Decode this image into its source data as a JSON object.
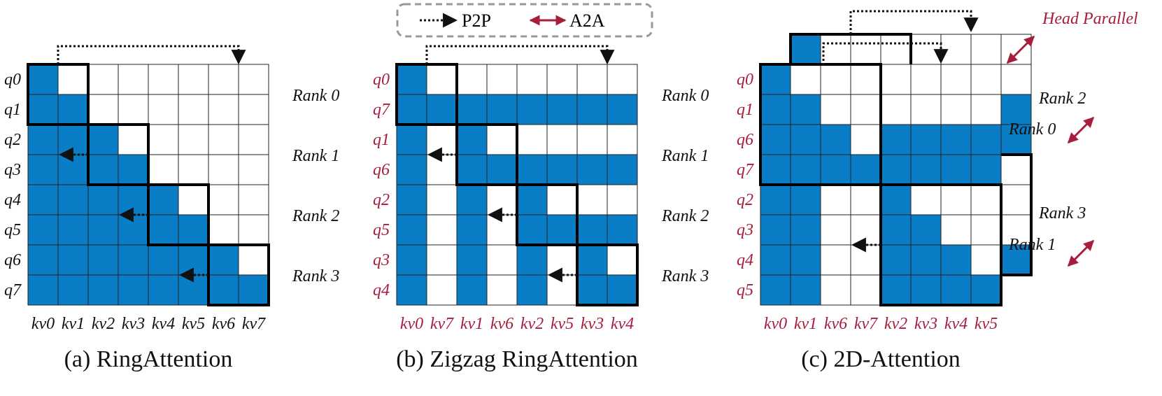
{
  "colors": {
    "fill": "#0a7dc7",
    "accent": "#a61e3c",
    "line": "#222222"
  },
  "legend": {
    "p2p": "P2P",
    "a2a": "A2A"
  },
  "head_parallel": "Head Parallel",
  "panels": {
    "a": {
      "caption": "(a) RingAttention",
      "rows": [
        "q0",
        "q1",
        "q2",
        "q3",
        "q4",
        "q5",
        "q6",
        "q7"
      ],
      "cols": [
        "kv0",
        "kv1",
        "kv2",
        "kv3",
        "kv4",
        "kv5",
        "kv6",
        "kv7"
      ],
      "ranks": [
        "Rank 0",
        "Rank 1",
        "Rank 2",
        "Rank 3"
      ]
    },
    "b": {
      "caption": "(b) Zigzag RingAttention",
      "rows": [
        "q0",
        "q7",
        "q1",
        "q6",
        "q2",
        "q5",
        "q3",
        "q4"
      ],
      "cols": [
        "kv0",
        "kv7",
        "kv1",
        "kv6",
        "kv2",
        "kv5",
        "kv3",
        "kv4"
      ],
      "ranks": [
        "Rank 0",
        "Rank 1",
        "Rank 2",
        "Rank 3"
      ]
    },
    "c": {
      "caption": "(c) 2D-Attention",
      "rows": [
        "q0",
        "q1",
        "q6",
        "q7",
        "q2",
        "q3",
        "q4",
        "q5"
      ],
      "cols": [
        "kv0",
        "kv1",
        "kv6",
        "kv7",
        "kv2",
        "kv3",
        "kv4",
        "kv5"
      ],
      "ranks": [
        "Rank 2",
        "Rank 0",
        "Rank 3",
        "Rank 1"
      ]
    }
  }
}
